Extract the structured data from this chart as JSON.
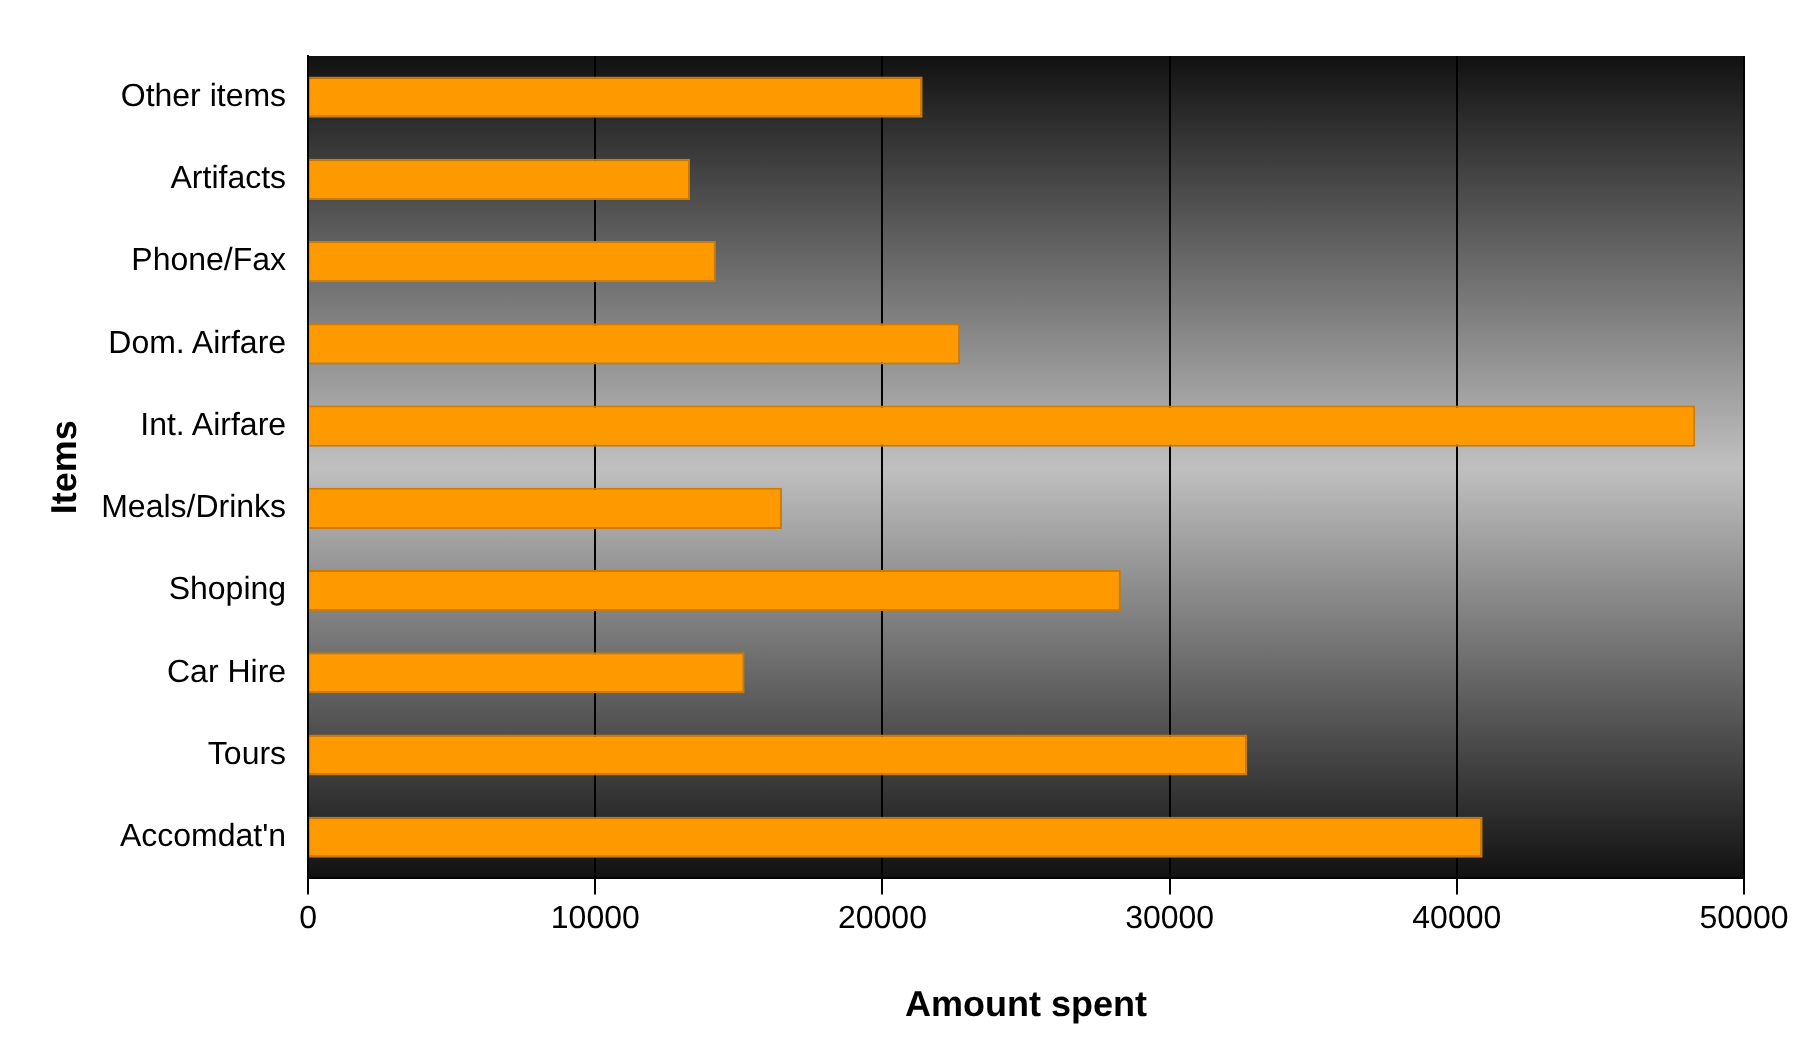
{
  "chart_data": {
    "type": "bar",
    "orientation": "horizontal",
    "xlabel": "Amount spent",
    "ylabel": "Items",
    "categories": [
      "Other items",
      "Artifacts",
      "Phone/Fax",
      "Dom. Airfare",
      "Int. Airfare",
      "Meals/Drinks",
      "Shoping",
      "Car Hire",
      "Tours",
      "Accomdat'n"
    ],
    "values": [
      21400,
      13300,
      14200,
      22700,
      48300,
      16500,
      28300,
      15200,
      32700,
      40900
    ],
    "color": "#ff9900",
    "xlim": [
      0,
      50000
    ],
    "xticks": [
      0,
      10000,
      20000,
      30000,
      40000,
      50000
    ],
    "grid": "x",
    "legend": false
  }
}
